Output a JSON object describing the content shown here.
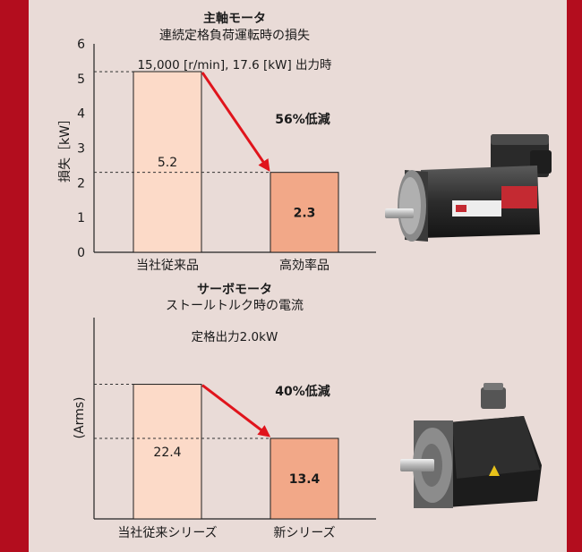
{
  "chart_data": [
    {
      "type": "bar",
      "title": "主軸モータ",
      "subtitle": "連続定格負荷運転時の損失",
      "annotation": "15,000 [r/min], 17.6 [kW] 出力時",
      "reduction_label": "56%低減",
      "ylabel": "損失［kW］",
      "ylim": [
        0,
        6
      ],
      "yticks": [
        "0",
        "1",
        "2",
        "3",
        "4",
        "5",
        "6"
      ],
      "categories": [
        "当社従来品",
        "高効率品"
      ],
      "values": [
        5.2,
        2.3
      ],
      "value_labels": [
        "5.2",
        "2.3"
      ],
      "bar_colors": [
        "#fcdac8",
        "#f2a888"
      ],
      "product_image": "spindle-motor"
    },
    {
      "type": "bar",
      "title": "サーボモータ",
      "subtitle": "ストールトルク時の電流",
      "annotation": "定格出力2.0kW",
      "reduction_label": "40%低減",
      "ylabel": "(Arms)",
      "categories": [
        "当社従来シリーズ",
        "新シリーズ"
      ],
      "values": [
        22.4,
        13.4
      ],
      "value_labels": [
        "22.4",
        "13.4"
      ],
      "bar_colors": [
        "#fcdac8",
        "#f2a888"
      ],
      "product_image": "servo-motor"
    }
  ],
  "colors": {
    "background_frame": "#b30d1e",
    "panel": "#e9dbd7",
    "arrow": "#e0141c"
  }
}
